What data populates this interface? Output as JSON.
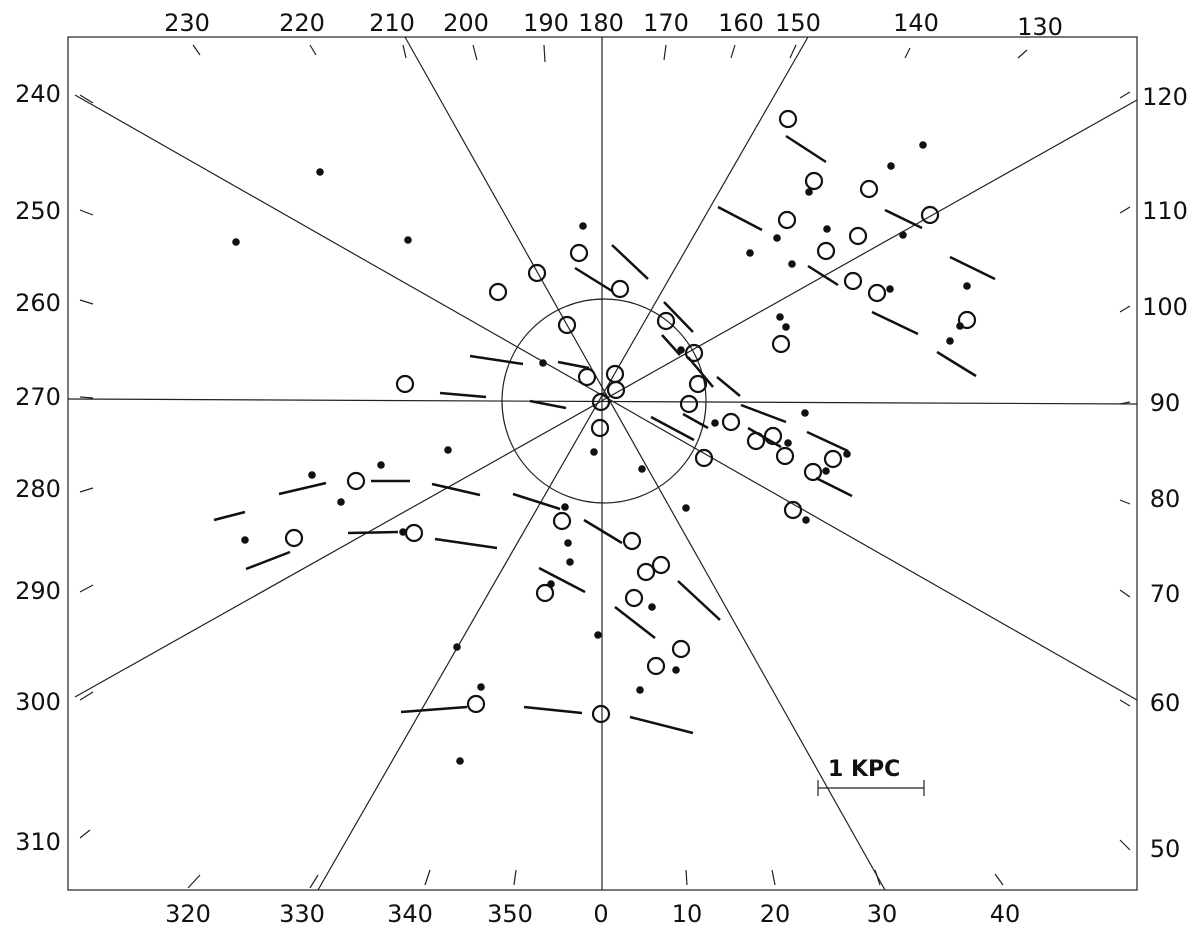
{
  "figure": {
    "top_labels": [
      "230",
      "220",
      "210",
      "200",
      "190",
      "180",
      "170",
      "160",
      "150",
      "140",
      "130"
    ],
    "bottom_labels": [
      "320",
      "330",
      "340",
      "350",
      "0",
      "10",
      "20",
      "30",
      "40"
    ],
    "left_labels": [
      "240",
      "250",
      "260",
      "270",
      "280",
      "290",
      "300",
      "310"
    ],
    "right_labels": [
      "120",
      "110",
      "100",
      "90",
      "80",
      "70",
      "60",
      "50"
    ],
    "scale_bar": "1 KPC"
  }
}
